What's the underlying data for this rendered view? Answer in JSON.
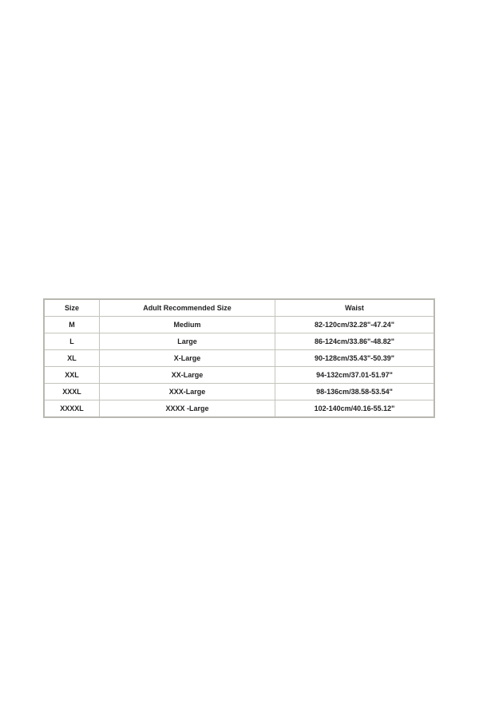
{
  "size_chart": {
    "headers": [
      "Size",
      "Adult Recommended Size",
      "Waist"
    ],
    "rows": [
      [
        "M",
        "Medium",
        "82-120cm/32.28\"-47.24\""
      ],
      [
        "L",
        "Large",
        "86-124cm/33.86\"-48.82\""
      ],
      [
        "XL",
        "X-Large",
        "90-128cm/35.43\"-50.39\""
      ],
      [
        "XXL",
        "XX-Large",
        "94-132cm/37.01-51.97\""
      ],
      [
        "XXXL",
        "XXX-Large",
        "98-136cm/38.58-53.54\""
      ],
      [
        "XXXXL",
        "XXXX -Large",
        "102-140cm/40.16-55.12\""
      ]
    ],
    "colors": {
      "border": "#c4c4bc",
      "text": "#222222",
      "background": "#ffffff"
    }
  }
}
